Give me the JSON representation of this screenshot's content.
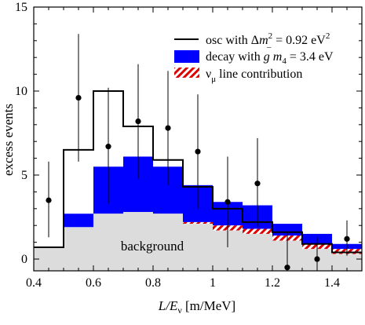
{
  "chart_data": {
    "type": "bar",
    "xlabel": "L/E",
    "xlabel_sub": "ν",
    "xlabel_unit": "[m/MeV]",
    "ylabel": "excess events",
    "xlim": [
      0.4,
      1.5
    ],
    "ylim": [
      -0.7,
      15
    ],
    "xticks": [
      0.4,
      0.6,
      0.8,
      1.0,
      1.2,
      1.4
    ],
    "xtick_labels": [
      "0.4",
      "0.6",
      "0.8",
      "1",
      "1.2",
      "1.4"
    ],
    "yticks": [
      0,
      5,
      10,
      15
    ],
    "ytick_labels": [
      "0",
      "5",
      "10",
      "15"
    ],
    "grid": false,
    "legend_position": "top-right",
    "background_label": "background",
    "legend": {
      "osc": {
        "prefix": "osc with ",
        "delta": "Δ",
        "m": "m",
        "sup": "2",
        "value": " = 0.92 eV",
        "unit_sup": "2"
      },
      "decay": {
        "prefix": "decay with ",
        "g": "g",
        "bar": "–",
        "space": " ",
        "m": "m",
        "sub": "4",
        "value": " = 3.4 eV"
      },
      "line": {
        "nu": "ν",
        "sub": "μ",
        "text": " line contribution"
      }
    },
    "colors": {
      "background": "#dcdcdc",
      "decay": "#0000ff",
      "line_hatch_red": "#dd0000",
      "osc_line": "#000000",
      "points": "#000000"
    },
    "bins": [
      {
        "x0": 0.4,
        "x1": 0.5,
        "background": 0.7,
        "line": 0.7,
        "decay": 0.7,
        "osc": 0.7
      },
      {
        "x0": 0.5,
        "x1": 0.6,
        "background": 1.9,
        "line": 1.9,
        "decay": 2.7,
        "osc": 6.5
      },
      {
        "x0": 0.6,
        "x1": 0.7,
        "background": 2.7,
        "line": 2.7,
        "decay": 5.5,
        "osc": 10.0
      },
      {
        "x0": 0.7,
        "x1": 0.8,
        "background": 2.8,
        "line": 2.8,
        "decay": 6.1,
        "osc": 7.9
      },
      {
        "x0": 0.8,
        "x1": 0.9,
        "background": 2.7,
        "line": 2.7,
        "decay": 5.5,
        "osc": 5.9
      },
      {
        "x0": 0.9,
        "x1": 1.0,
        "background": 2.1,
        "line": 2.2,
        "decay": 4.4,
        "osc": 4.3
      },
      {
        "x0": 1.0,
        "x1": 1.1,
        "background": 1.7,
        "line": 2.0,
        "decay": 3.4,
        "osc": 3.0
      },
      {
        "x0": 1.1,
        "x1": 1.2,
        "background": 1.5,
        "line": 1.8,
        "decay": 3.2,
        "osc": 2.2
      },
      {
        "x0": 1.2,
        "x1": 1.3,
        "background": 1.1,
        "line": 1.4,
        "decay": 2.1,
        "osc": 1.6
      },
      {
        "x0": 1.3,
        "x1": 1.4,
        "background": 0.6,
        "line": 0.9,
        "decay": 1.5,
        "osc": 0.9
      },
      {
        "x0": 1.4,
        "x1": 1.5,
        "background": 0.3,
        "line": 0.6,
        "decay": 0.9,
        "osc": 0.4
      }
    ],
    "data_points": [
      {
        "x": 0.45,
        "y": 3.5,
        "lo": 1.3,
        "hi": 5.8
      },
      {
        "x": 0.55,
        "y": 9.6,
        "lo": 5.8,
        "hi": 13.4
      },
      {
        "x": 0.65,
        "y": 6.7,
        "lo": 3.3,
        "hi": 10.2
      },
      {
        "x": 0.75,
        "y": 8.2,
        "lo": 4.8,
        "hi": 11.6
      },
      {
        "x": 0.85,
        "y": 7.8,
        "lo": 4.4,
        "hi": 11.2
      },
      {
        "x": 0.95,
        "y": 6.4,
        "lo": 3.0,
        "hi": 9.8
      },
      {
        "x": 1.05,
        "y": 3.4,
        "lo": 0.7,
        "hi": 6.1
      },
      {
        "x": 1.15,
        "y": 4.5,
        "lo": 1.9,
        "hi": 7.2
      },
      {
        "x": 1.25,
        "y": -0.5,
        "lo": -0.7,
        "hi": 1.6
      },
      {
        "x": 1.35,
        "y": 0.0,
        "lo": -0.7,
        "hi": 1.3
      },
      {
        "x": 1.45,
        "y": 1.2,
        "lo": 0.2,
        "hi": 2.3
      }
    ]
  }
}
